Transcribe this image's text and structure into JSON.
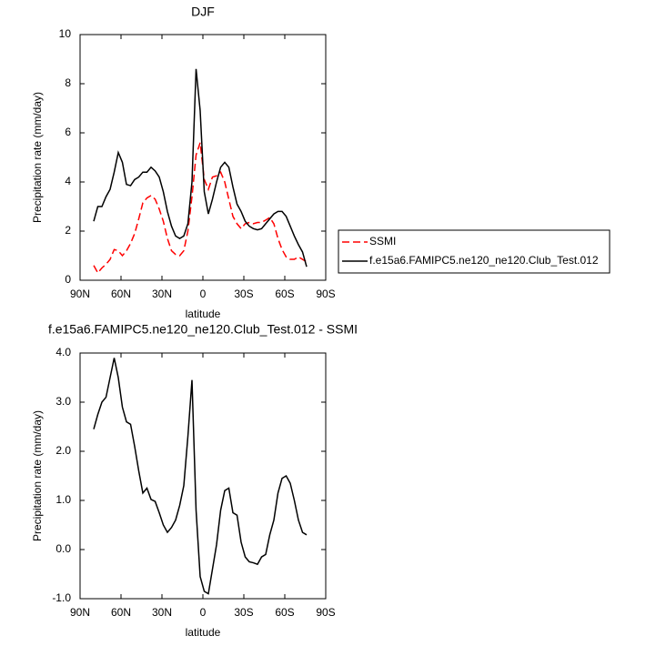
{
  "chart_data": [
    {
      "type": "line",
      "title": "DJF",
      "xlabel": "latitude",
      "ylabel": "Precipitation rate (mm/day)",
      "x": [
        80,
        77,
        74,
        71,
        68,
        65,
        62,
        59,
        56,
        53,
        50,
        47,
        44,
        41,
        38,
        35,
        32,
        29,
        26,
        23,
        20,
        17,
        14,
        11,
        8,
        5,
        2,
        -1,
        -4,
        -7,
        -10,
        -13,
        -16,
        -19,
        -22,
        -25,
        -28,
        -31,
        -34,
        -37,
        -40,
        -43,
        -46,
        -49,
        -52,
        -55,
        -58,
        -61,
        -64,
        -67,
        -70,
        -73,
        -76
      ],
      "series": [
        {
          "name": "SSMI",
          "color": "#ff0000",
          "linestyle": "dashed",
          "values": [
            0.6,
            0.3,
            0.5,
            0.65,
            0.85,
            1.25,
            1.2,
            1.0,
            1.2,
            1.5,
            1.9,
            2.5,
            3.15,
            3.35,
            3.45,
            3.3,
            2.9,
            2.4,
            1.7,
            1.2,
            1.05,
            1.0,
            1.2,
            2.0,
            3.4,
            5.1,
            5.6,
            4.1,
            3.7,
            4.2,
            4.25,
            4.4,
            4.0,
            3.3,
            2.6,
            2.3,
            2.1,
            2.3,
            2.35,
            2.3,
            2.35,
            2.35,
            2.45,
            2.55,
            2.3,
            1.7,
            1.25,
            0.95,
            0.85,
            0.85,
            0.95,
            0.85,
            0.75
          ]
        },
        {
          "name": "f.e15a6.FAMIPC5.ne120_ne120.Club_Test.012",
          "color": "#000000",
          "linestyle": "solid",
          "values": [
            2.4,
            3.0,
            3.0,
            3.4,
            3.7,
            4.4,
            5.2,
            4.8,
            3.9,
            3.85,
            4.1,
            4.2,
            4.4,
            4.4,
            4.6,
            4.45,
            4.2,
            3.6,
            2.8,
            2.2,
            1.8,
            1.7,
            1.8,
            2.3,
            4.0,
            8.6,
            6.9,
            3.6,
            2.7,
            3.3,
            4.0,
            4.6,
            4.8,
            4.6,
            3.8,
            3.1,
            2.8,
            2.4,
            2.2,
            2.1,
            2.05,
            2.1,
            2.3,
            2.5,
            2.7,
            2.8,
            2.8,
            2.6,
            2.2,
            1.8,
            1.45,
            1.15,
            0.55
          ]
        }
      ],
      "xlim": [
        90,
        -90
      ],
      "xticks": [
        {
          "value": 90,
          "label": "90N"
        },
        {
          "value": 60,
          "label": "60N"
        },
        {
          "value": 30,
          "label": "30N"
        },
        0,
        {
          "value": -30,
          "label": "30S"
        },
        {
          "value": -60,
          "label": "60S"
        },
        {
          "value": -90,
          "label": "90S"
        }
      ],
      "ylim": [
        0,
        10
      ],
      "yticks": [
        0,
        2,
        4,
        6,
        8,
        10
      ],
      "legend": "right"
    },
    {
      "type": "line",
      "title": "f.e15a6.FAMIPC5.ne120_ne120.Club_Test.012 - SSMI",
      "xlabel": "latitude",
      "ylabel": "Precipitation rate (mm/day)",
      "x": [
        80,
        77,
        74,
        71,
        68,
        65,
        62,
        59,
        56,
        53,
        50,
        47,
        44,
        41,
        38,
        35,
        32,
        29,
        26,
        23,
        20,
        17,
        14,
        11,
        8,
        5,
        2,
        -1,
        -4,
        -7,
        -10,
        -13,
        -16,
        -19,
        -22,
        -25,
        -28,
        -31,
        -34,
        -37,
        -40,
        -43,
        -46,
        -49,
        -52,
        -55,
        -58,
        -61,
        -64,
        -67,
        -70,
        -73,
        -76
      ],
      "series": [
        {
          "color": "#000000",
          "linestyle": "solid",
          "values": [
            2.45,
            2.75,
            3.0,
            3.1,
            3.5,
            3.9,
            3.5,
            2.9,
            2.6,
            2.55,
            2.1,
            1.6,
            1.15,
            1.25,
            1.02,
            0.98,
            0.75,
            0.5,
            0.35,
            0.45,
            0.6,
            0.9,
            1.3,
            2.3,
            3.45,
            0.8,
            -0.55,
            -0.85,
            -0.9,
            -0.4,
            0.1,
            0.8,
            1.2,
            1.25,
            0.75,
            0.7,
            0.15,
            -0.15,
            -0.25,
            -0.27,
            -0.3,
            -0.15,
            -0.1,
            0.3,
            0.6,
            1.15,
            1.45,
            1.5,
            1.35,
            1.0,
            0.6,
            0.35,
            0.3
          ]
        }
      ],
      "xlim": [
        90,
        -90
      ],
      "xticks": [
        {
          "value": 90,
          "label": "90N"
        },
        {
          "value": 60,
          "label": "60N"
        },
        {
          "value": 30,
          "label": "30N"
        },
        0,
        {
          "value": -30,
          "label": "30S"
        },
        {
          "value": -60,
          "label": "60S"
        },
        {
          "value": -90,
          "label": "90S"
        }
      ],
      "ylim": [
        -1,
        4
      ],
      "yticks": [
        {
          "value": -1,
          "label": "-1.0"
        },
        {
          "value": 0,
          "label": "0.0"
        },
        {
          "value": 1,
          "label": "1.0"
        },
        {
          "value": 2,
          "label": "2.0"
        },
        {
          "value": 3,
          "label": "3.0"
        },
        {
          "value": 4,
          "label": "4.0"
        }
      ]
    }
  ]
}
